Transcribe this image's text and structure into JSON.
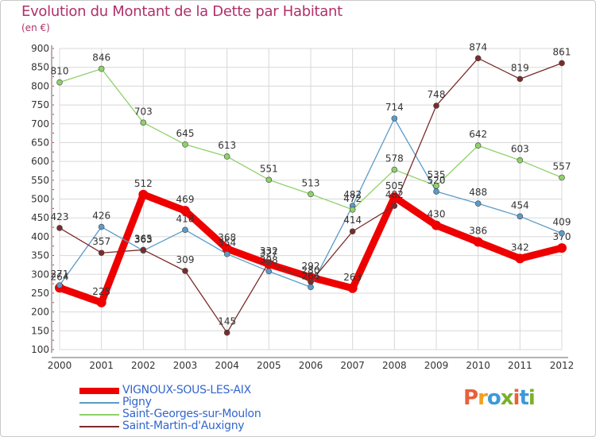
{
  "header": {
    "title": "Evolution du Montant de la Dette par Habitant",
    "subtitle": "(en €)"
  },
  "logo": {
    "text": "Proxiti",
    "colors": [
      "#e8613a",
      "#f0a020",
      "#3a9ad9",
      "#7ab02c",
      "#e8613a",
      "#3a9ad9",
      "#7ab02c"
    ]
  },
  "colors": {
    "title": "#b0306a",
    "grid": "#d8d8d8"
  },
  "chart_data": {
    "type": "line",
    "title": "Evolution du Montant de la Dette par Habitant",
    "subtitle": "(en €)",
    "xlabel": "",
    "ylabel": "",
    "x": [
      "2000",
      "2001",
      "2002",
      "2003",
      "2004",
      "2005",
      "2006",
      "2007",
      "2008",
      "2009",
      "2010",
      "2011",
      "2012"
    ],
    "ylim": [
      100,
      900
    ],
    "yticks": [
      100,
      150,
      200,
      250,
      300,
      350,
      400,
      450,
      500,
      550,
      600,
      650,
      700,
      750,
      800,
      850,
      900
    ],
    "grid": true,
    "legend": "bottom-left",
    "series": [
      {
        "name": "VIGNOUX-SOUS-LES-AIX",
        "color": "#ee0000",
        "width": 9,
        "marker": 6,
        "labelColor": "#333333",
        "values": [
          264,
          225,
          512,
          469,
          368,
          327,
          292,
          263,
          505,
          430,
          386,
          342,
          370
        ]
      },
      {
        "name": "Pigny",
        "color": "#5b9bc8",
        "width": 1.3,
        "marker": 3.5,
        "labelColor": "#333333",
        "values": [
          271,
          426,
          363,
          418,
          354,
          308,
          266,
          482,
          714,
          520,
          488,
          454,
          409
        ]
      },
      {
        "name": "Saint-Georges-sur-Moulon",
        "color": "#8fd16a",
        "width": 1.3,
        "marker": 3.5,
        "labelColor": "#333333",
        "values": [
          810,
          846,
          703,
          645,
          613,
          551,
          513,
          472,
          578,
          535,
          642,
          603,
          557
        ]
      },
      {
        "name": "Saint-Martin-d'Auxigny",
        "color": "#7a2c2c",
        "width": 1.3,
        "marker": 3.5,
        "labelColor": "#333333",
        "values": [
          423,
          357,
          365,
          309,
          145,
          332,
          280,
          414,
          482,
          748,
          874,
          819,
          861
        ]
      }
    ]
  }
}
